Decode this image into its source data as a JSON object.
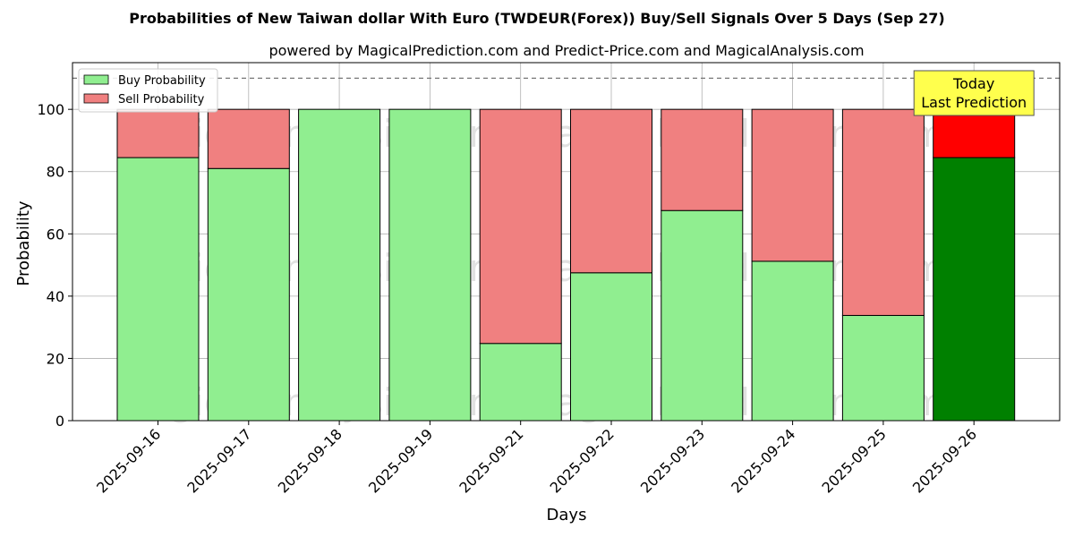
{
  "chart_data": {
    "type": "bar",
    "stacked": true,
    "title": "Probabilities of New Taiwan dollar With Euro (TWDEUR(Forex)) Buy/Sell Signals Over 5 Days (Sep 27)",
    "subtitle": "powered by MagicalPrediction.com and Predict-Price.com and MagicalAnalysis.com",
    "xlabel": "Days",
    "ylabel": "Probability",
    "ylim": [
      0,
      115
    ],
    "yticks": [
      0,
      20,
      40,
      60,
      80,
      100
    ],
    "reference_line": 110,
    "grid": true,
    "legend_position": "top-left",
    "categories": [
      "2025-09-16",
      "2025-09-17",
      "2025-09-18",
      "2025-09-19",
      "2025-09-21",
      "2025-09-22",
      "2025-09-23",
      "2025-09-24",
      "2025-09-25",
      "2025-09-26"
    ],
    "series": [
      {
        "name": "Buy Probability",
        "color": "#90ee90",
        "values": [
          84.5,
          81.0,
          100,
          100,
          24.8,
          47.5,
          67.5,
          51.2,
          33.8,
          84.5
        ]
      },
      {
        "name": "Sell Probability",
        "color": "#f08080",
        "values": [
          15.5,
          19.0,
          0,
          0,
          75.2,
          52.5,
          32.5,
          48.8,
          66.2,
          15.5
        ]
      }
    ],
    "highlight": {
      "index": 9,
      "buy_color": "#008000",
      "sell_color": "#ff0000"
    },
    "annotation": {
      "lines": [
        "Today",
        "Last Prediction"
      ],
      "background": "#ffff4d"
    },
    "watermarks": [
      "MagicalAnalysis.com",
      "MagicalPrediction.com",
      "MagicalAnalysis.com",
      "MagicalPrediction.com",
      "MagicalAnalysis.com",
      "MagicalPrediction.com"
    ]
  }
}
